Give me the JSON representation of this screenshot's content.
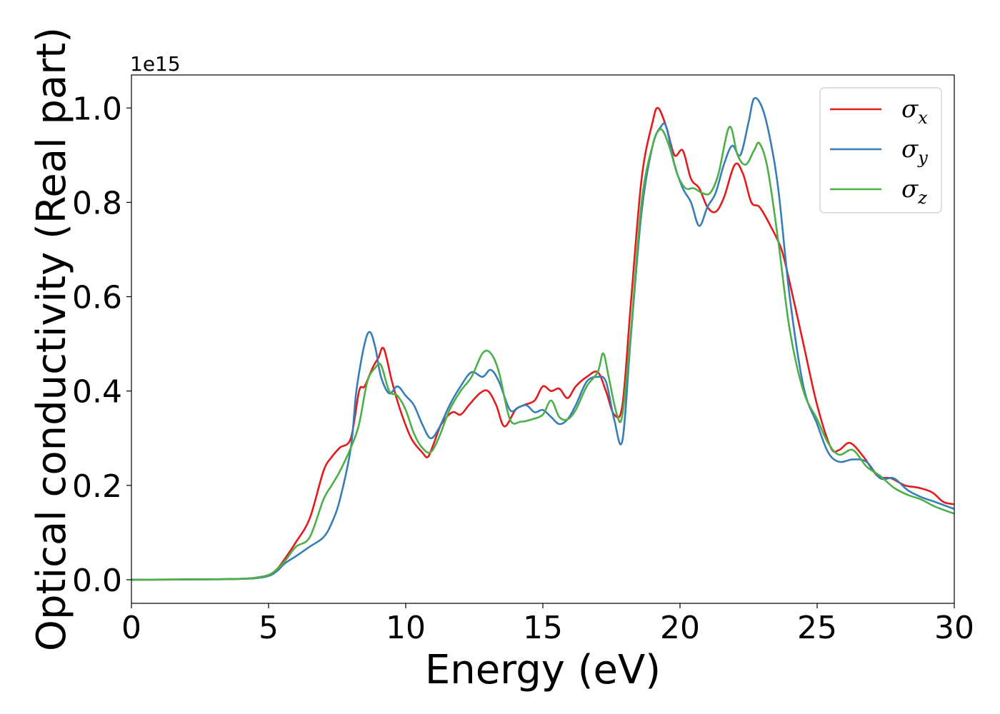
{
  "chart_data": {
    "type": "line",
    "title": "",
    "xlabel": "Energy (eV)",
    "ylabel": "Optical conductivity (Real part)",
    "y_offset_text": "1e15",
    "y_scale_factor": 1000000000000000.0,
    "xlim": [
      0,
      30
    ],
    "ylim": [
      -0.05,
      1.07
    ],
    "xticks": [
      0,
      5,
      10,
      15,
      20,
      25,
      30
    ],
    "xtick_labels": [
      "0",
      "5",
      "10",
      "15",
      "20",
      "25",
      "30"
    ],
    "yticks": [
      0.0,
      0.2,
      0.4,
      0.6,
      0.8,
      1.0
    ],
    "ytick_labels": [
      "0.0",
      "0.2",
      "0.4",
      "0.6",
      "0.8",
      "1.0"
    ],
    "grid": false,
    "legend_position": "top-right",
    "series": [
      {
        "name": "σx",
        "symbol": "σ",
        "subscript": "x",
        "color": "#e41a1c",
        "x": [
          0,
          3,
          4,
          4.5,
          5,
          5.3,
          5.6,
          6,
          6.5,
          7,
          7.3,
          7.6,
          8,
          8.3,
          8.5,
          8.8,
          9,
          9.2,
          9.5,
          9.8,
          10.2,
          10.6,
          10.8,
          11,
          11.3,
          11.7,
          12,
          12.3,
          12.7,
          13,
          13.3,
          13.6,
          14,
          14.3,
          14.7,
          15,
          15.3,
          15.6,
          15.9,
          16.2,
          16.6,
          17,
          17.3,
          17.6,
          17.9,
          18.2,
          18.6,
          19,
          19.2,
          19.5,
          19.8,
          20.1,
          20.4,
          20.7,
          21,
          21.3,
          21.6,
          22,
          22.3,
          22.6,
          22.9,
          23.3,
          23.7,
          24,
          24.5,
          25,
          25.5,
          25.8,
          26.2,
          26.7,
          27.2,
          27.7,
          28.2,
          28.7,
          29.2,
          29.6,
          30
        ],
        "values": [
          0,
          0.001,
          0.002,
          0.004,
          0.01,
          0.022,
          0.045,
          0.08,
          0.13,
          0.23,
          0.26,
          0.28,
          0.3,
          0.4,
          0.41,
          0.45,
          0.47,
          0.49,
          0.42,
          0.36,
          0.3,
          0.27,
          0.26,
          0.285,
          0.33,
          0.355,
          0.35,
          0.37,
          0.395,
          0.4,
          0.37,
          0.325,
          0.36,
          0.37,
          0.38,
          0.41,
          0.4,
          0.405,
          0.385,
          0.41,
          0.43,
          0.44,
          0.4,
          0.35,
          0.37,
          0.58,
          0.85,
          0.97,
          1.0,
          0.96,
          0.9,
          0.91,
          0.85,
          0.83,
          0.79,
          0.78,
          0.81,
          0.88,
          0.86,
          0.8,
          0.79,
          0.75,
          0.7,
          0.63,
          0.5,
          0.37,
          0.28,
          0.275,
          0.29,
          0.26,
          0.22,
          0.215,
          0.2,
          0.195,
          0.185,
          0.165,
          0.16
        ]
      },
      {
        "name": "σy",
        "symbol": "σ",
        "subscript": "y",
        "color": "#377eb8",
        "x": [
          0,
          3,
          4,
          4.5,
          5,
          5.3,
          5.6,
          6,
          6.5,
          7,
          7.3,
          7.6,
          8,
          8.2,
          8.5,
          8.7,
          8.9,
          9.1,
          9.4,
          9.7,
          10,
          10.3,
          10.6,
          10.9,
          11.2,
          11.6,
          12,
          12.4,
          12.8,
          13.1,
          13.4,
          13.8,
          14.1,
          14.4,
          14.7,
          15,
          15.3,
          15.6,
          15.9,
          16.2,
          16.6,
          17,
          17.3,
          17.6,
          17.9,
          18.2,
          18.6,
          19,
          19.3,
          19.5,
          19.8,
          20.1,
          20.4,
          20.7,
          21,
          21.3,
          21.6,
          21.9,
          22.2,
          22.5,
          22.7,
          23,
          23.3,
          23.6,
          24,
          24.5,
          25,
          25.4,
          25.8,
          26.3,
          26.8,
          27.3,
          27.8,
          28.3,
          28.8,
          29.3,
          30
        ],
        "values": [
          0,
          0.001,
          0.002,
          0.003,
          0.008,
          0.018,
          0.035,
          0.05,
          0.07,
          0.09,
          0.12,
          0.17,
          0.28,
          0.4,
          0.5,
          0.525,
          0.49,
          0.43,
          0.395,
          0.41,
          0.39,
          0.37,
          0.33,
          0.3,
          0.32,
          0.37,
          0.41,
          0.44,
          0.43,
          0.445,
          0.42,
          0.36,
          0.365,
          0.37,
          0.355,
          0.36,
          0.345,
          0.33,
          0.34,
          0.37,
          0.42,
          0.43,
          0.42,
          0.34,
          0.295,
          0.51,
          0.78,
          0.92,
          0.96,
          0.96,
          0.88,
          0.83,
          0.8,
          0.75,
          0.79,
          0.82,
          0.88,
          0.92,
          0.9,
          0.97,
          1.02,
          1.0,
          0.93,
          0.82,
          0.6,
          0.41,
          0.33,
          0.27,
          0.25,
          0.255,
          0.25,
          0.215,
          0.215,
          0.19,
          0.175,
          0.165,
          0.15
        ]
      },
      {
        "name": "σz",
        "symbol": "σ",
        "subscript": "z",
        "color": "#4daf4a",
        "x": [
          0,
          3,
          4,
          4.5,
          5,
          5.3,
          5.6,
          6,
          6.5,
          7,
          7.3,
          7.6,
          8,
          8.3,
          8.6,
          8.9,
          9.1,
          9.4,
          9.7,
          10,
          10.3,
          10.6,
          10.9,
          11.2,
          11.6,
          12,
          12.4,
          12.8,
          13.1,
          13.4,
          13.8,
          14.2,
          14.6,
          15,
          15.3,
          15.6,
          15.9,
          16.2,
          16.6,
          17,
          17.2,
          17.4,
          17.7,
          17.9,
          18.2,
          18.6,
          19,
          19.3,
          19.6,
          19.9,
          20.2,
          20.5,
          20.8,
          21.1,
          21.4,
          21.8,
          22.1,
          22.4,
          22.7,
          22.9,
          23.2,
          23.6,
          24,
          24.5,
          25,
          25.4,
          25.8,
          26.3,
          26.8,
          27.3,
          27.8,
          28.3,
          28.8,
          29.3,
          30
        ],
        "values": [
          0,
          0.001,
          0.002,
          0.004,
          0.01,
          0.022,
          0.04,
          0.07,
          0.09,
          0.17,
          0.2,
          0.23,
          0.28,
          0.33,
          0.42,
          0.45,
          0.455,
          0.4,
          0.39,
          0.36,
          0.31,
          0.28,
          0.27,
          0.3,
          0.36,
          0.4,
          0.43,
          0.48,
          0.48,
          0.44,
          0.34,
          0.335,
          0.34,
          0.35,
          0.38,
          0.345,
          0.34,
          0.36,
          0.41,
          0.44,
          0.48,
          0.43,
          0.35,
          0.35,
          0.52,
          0.8,
          0.92,
          0.955,
          0.92,
          0.86,
          0.83,
          0.83,
          0.82,
          0.82,
          0.86,
          0.96,
          0.9,
          0.88,
          0.91,
          0.925,
          0.87,
          0.71,
          0.53,
          0.4,
          0.34,
          0.29,
          0.265,
          0.275,
          0.24,
          0.22,
          0.195,
          0.18,
          0.17,
          0.155,
          0.14
        ]
      }
    ]
  }
}
